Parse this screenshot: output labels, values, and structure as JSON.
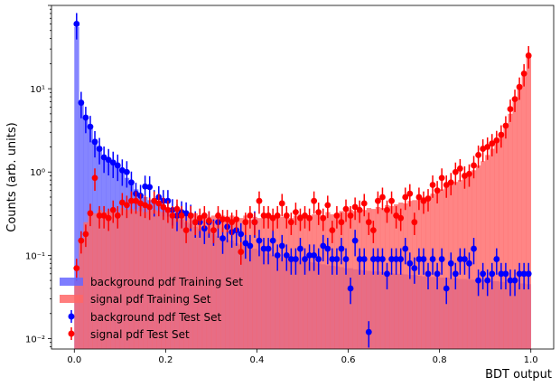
{
  "chart_data": {
    "type": "bar",
    "subtype": "histogram-with-errorbars",
    "title": "",
    "xlabel": "BDT output",
    "ylabel": "Counts (arb. units)",
    "xlim": [
      -0.05,
      1.05
    ],
    "ylim": [
      0.0075,
      100
    ],
    "yscale": "log",
    "xticks": [
      "0.0",
      "0.2",
      "0.4",
      "0.6",
      "0.8",
      "1.0"
    ],
    "yticks": [
      {
        "value": 0.01,
        "label": "10⁻²"
      },
      {
        "value": 0.1,
        "label": "10⁻¹"
      },
      {
        "value": 1,
        "label": "10⁰"
      },
      {
        "value": 10,
        "label": "10¹"
      }
    ],
    "grid": false,
    "legend_position": "lower-left",
    "bin_edges": [
      0.0,
      0.01,
      0.02,
      0.03,
      0.04,
      0.05,
      0.06,
      0.07,
      0.08,
      0.09,
      0.1,
      0.11,
      0.12,
      0.13,
      0.14,
      0.15,
      0.16,
      0.17,
      0.18,
      0.19,
      0.2,
      0.21,
      0.22,
      0.23,
      0.24,
      0.25,
      0.26,
      0.27,
      0.28,
      0.29,
      0.3,
      0.31,
      0.32,
      0.33,
      0.34,
      0.35,
      0.36,
      0.37,
      0.38,
      0.39,
      0.4,
      0.41,
      0.42,
      0.43,
      0.44,
      0.45,
      0.46,
      0.47,
      0.48,
      0.49,
      0.5,
      0.51,
      0.52,
      0.53,
      0.54,
      0.55,
      0.56,
      0.57,
      0.58,
      0.59,
      0.6,
      0.61,
      0.62,
      0.63,
      0.64,
      0.65,
      0.66,
      0.67,
      0.68,
      0.69,
      0.7,
      0.71,
      0.72,
      0.73,
      0.74,
      0.75,
      0.76,
      0.77,
      0.78,
      0.79,
      0.8,
      0.81,
      0.82,
      0.83,
      0.84,
      0.85,
      0.86,
      0.87,
      0.88,
      0.89,
      0.9,
      0.91,
      0.92,
      0.93,
      0.94,
      0.95,
      0.96,
      0.97,
      0.98,
      0.99,
      1.0
    ],
    "series": [
      {
        "name": "background pdf Training Set",
        "kind": "hist",
        "color": "#6666ff",
        "values": [
          55,
          7.0,
          4.2,
          3.4,
          2.5,
          1.9,
          1.6,
          1.4,
          1.3,
          1.2,
          1.0,
          0.85,
          0.75,
          0.62,
          0.55,
          0.5,
          0.46,
          0.43,
          0.4,
          0.37,
          0.34,
          0.31,
          0.29,
          0.27,
          0.25,
          0.24,
          0.22,
          0.21,
          0.2,
          0.19,
          0.18,
          0.17,
          0.16,
          0.155,
          0.15,
          0.14,
          0.135,
          0.13,
          0.125,
          0.12,
          0.115,
          0.11,
          0.105,
          0.1,
          0.098,
          0.095,
          0.092,
          0.09,
          0.088,
          0.086,
          0.085,
          0.083,
          0.082,
          0.08,
          0.078,
          0.076,
          0.075,
          0.074,
          0.072,
          0.07,
          0.07,
          0.068,
          0.067,
          0.066,
          0.065,
          0.064,
          0.064,
          0.063,
          0.062,
          0.061,
          0.06,
          0.06,
          0.059,
          0.058,
          0.058,
          0.057,
          0.056,
          0.056,
          0.055,
          0.055,
          0.054,
          0.054,
          0.053,
          0.053,
          0.052,
          0.052,
          0.051,
          0.051,
          0.05,
          0.05,
          0.05,
          0.049,
          0.049,
          0.048,
          0.048,
          0.047,
          0.047,
          0.046,
          0.046,
          0.045
        ]
      },
      {
        "name": "signal pdf Training Set",
        "kind": "hist",
        "color": "#ff6666",
        "values": [
          0.05,
          0.15,
          0.25,
          0.3,
          0.32,
          0.35,
          0.33,
          0.34,
          0.36,
          0.33,
          0.37,
          0.35,
          0.36,
          0.34,
          0.38,
          0.33,
          0.36,
          0.35,
          0.34,
          0.33,
          0.35,
          0.32,
          0.34,
          0.3,
          0.33,
          0.31,
          0.32,
          0.3,
          0.31,
          0.29,
          0.3,
          0.29,
          0.3,
          0.28,
          0.3,
          0.29,
          0.28,
          0.3,
          0.27,
          0.29,
          0.28,
          0.3,
          0.29,
          0.28,
          0.3,
          0.29,
          0.31,
          0.28,
          0.3,
          0.31,
          0.3,
          0.29,
          0.31,
          0.32,
          0.3,
          0.33,
          0.31,
          0.32,
          0.34,
          0.33,
          0.35,
          0.34,
          0.36,
          0.35,
          0.37,
          0.36,
          0.38,
          0.37,
          0.4,
          0.39,
          0.41,
          0.43,
          0.42,
          0.45,
          0.46,
          0.48,
          0.5,
          0.52,
          0.55,
          0.6,
          0.62,
          0.66,
          0.7,
          0.76,
          0.8,
          0.88,
          0.95,
          1.05,
          1.2,
          1.35,
          1.6,
          1.9,
          2.3,
          2.9,
          3.8,
          5.0,
          7.0,
          10.0,
          15.0,
          25.0
        ]
      },
      {
        "name": "background pdf Test Set",
        "kind": "errorbar",
        "color": "#0000ff",
        "x": [
          0.005,
          0.015,
          0.025,
          0.035,
          0.045,
          0.055,
          0.065,
          0.075,
          0.085,
          0.095,
          0.105,
          0.115,
          0.125,
          0.135,
          0.145,
          0.155,
          0.165,
          0.175,
          0.185,
          0.195,
          0.205,
          0.215,
          0.225,
          0.235,
          0.245,
          0.255,
          0.265,
          0.275,
          0.285,
          0.295,
          0.305,
          0.315,
          0.325,
          0.335,
          0.345,
          0.355,
          0.365,
          0.375,
          0.385,
          0.395,
          0.405,
          0.415,
          0.425,
          0.435,
          0.445,
          0.455,
          0.465,
          0.475,
          0.485,
          0.495,
          0.505,
          0.515,
          0.525,
          0.535,
          0.545,
          0.555,
          0.565,
          0.575,
          0.585,
          0.595,
          0.605,
          0.615,
          0.625,
          0.635,
          0.645,
          0.655,
          0.665,
          0.675,
          0.685,
          0.695,
          0.705,
          0.715,
          0.725,
          0.735,
          0.745,
          0.755,
          0.765,
          0.775,
          0.785,
          0.795,
          0.805,
          0.815,
          0.825,
          0.835,
          0.845,
          0.855,
          0.865,
          0.875,
          0.885,
          0.895,
          0.905,
          0.915,
          0.925,
          0.935,
          0.945,
          0.955,
          0.965,
          0.975,
          0.985,
          0.995
        ],
        "y": [
          60,
          6.8,
          4.5,
          3.5,
          2.3,
          1.9,
          1.5,
          1.4,
          1.3,
          1.2,
          1.05,
          1.0,
          0.75,
          0.55,
          0.52,
          0.67,
          0.66,
          0.45,
          0.5,
          0.45,
          0.45,
          0.35,
          0.3,
          0.33,
          0.32,
          0.3,
          0.25,
          0.25,
          0.21,
          0.25,
          0.2,
          0.25,
          0.16,
          0.22,
          0.19,
          0.2,
          0.18,
          0.14,
          0.13,
          0.25,
          0.15,
          0.12,
          0.12,
          0.15,
          0.1,
          0.13,
          0.1,
          0.09,
          0.09,
          0.12,
          0.09,
          0.1,
          0.1,
          0.09,
          0.13,
          0.12,
          0.09,
          0.09,
          0.12,
          0.09,
          0.04,
          0.15,
          0.09,
          0.09,
          0.012,
          0.09,
          0.09,
          0.09,
          0.06,
          0.09,
          0.09,
          0.09,
          0.12,
          0.08,
          0.07,
          0.09,
          0.09,
          0.06,
          0.09,
          0.06,
          0.09,
          0.04,
          0.08,
          0.06,
          0.09,
          0.09,
          0.08,
          0.12,
          0.05,
          0.06,
          0.05,
          0.06,
          0.09,
          0.06,
          0.06,
          0.05,
          0.05,
          0.06,
          0.06,
          0.06
        ],
        "yerr_rel": 0.35
      },
      {
        "name": "signal pdf Test Set",
        "kind": "errorbar",
        "color": "#ff0000",
        "x": [
          0.005,
          0.015,
          0.025,
          0.035,
          0.045,
          0.055,
          0.065,
          0.075,
          0.085,
          0.095,
          0.105,
          0.115,
          0.125,
          0.135,
          0.145,
          0.155,
          0.165,
          0.175,
          0.185,
          0.195,
          0.205,
          0.215,
          0.225,
          0.235,
          0.245,
          0.255,
          0.265,
          0.275,
          0.285,
          0.295,
          0.305,
          0.315,
          0.325,
          0.335,
          0.345,
          0.355,
          0.365,
          0.375,
          0.385,
          0.395,
          0.405,
          0.415,
          0.425,
          0.435,
          0.445,
          0.455,
          0.465,
          0.475,
          0.485,
          0.495,
          0.505,
          0.515,
          0.525,
          0.535,
          0.545,
          0.555,
          0.565,
          0.575,
          0.585,
          0.595,
          0.605,
          0.615,
          0.625,
          0.635,
          0.645,
          0.655,
          0.665,
          0.675,
          0.685,
          0.695,
          0.705,
          0.715,
          0.725,
          0.735,
          0.745,
          0.755,
          0.765,
          0.775,
          0.785,
          0.795,
          0.805,
          0.815,
          0.825,
          0.835,
          0.845,
          0.855,
          0.865,
          0.875,
          0.885,
          0.895,
          0.905,
          0.915,
          0.925,
          0.935,
          0.945,
          0.955,
          0.965,
          0.975,
          0.985,
          0.995
        ],
        "y": [
          0.07,
          0.15,
          0.18,
          0.32,
          0.85,
          0.3,
          0.3,
          0.28,
          0.35,
          0.3,
          0.43,
          0.4,
          0.45,
          0.45,
          0.42,
          0.4,
          0.38,
          0.45,
          0.42,
          0.38,
          0.35,
          0.3,
          0.36,
          0.3,
          0.2,
          0.3,
          0.25,
          0.28,
          0.3,
          0.26,
          0.2,
          0.3,
          0.27,
          0.27,
          0.25,
          0.27,
          0.11,
          0.25,
          0.3,
          0.25,
          0.45,
          0.3,
          0.3,
          0.28,
          0.3,
          0.42,
          0.3,
          0.25,
          0.33,
          0.28,
          0.3,
          0.28,
          0.45,
          0.33,
          0.28,
          0.4,
          0.2,
          0.3,
          0.25,
          0.36,
          0.3,
          0.38,
          0.35,
          0.42,
          0.25,
          0.2,
          0.45,
          0.5,
          0.35,
          0.45,
          0.3,
          0.28,
          0.5,
          0.55,
          0.25,
          0.5,
          0.45,
          0.48,
          0.7,
          0.6,
          0.85,
          0.7,
          0.75,
          1.0,
          1.1,
          0.9,
          0.95,
          1.2,
          1.6,
          1.9,
          2.0,
          2.2,
          2.4,
          2.8,
          3.6,
          5.7,
          7.5,
          10.5,
          15.2,
          25.0
        ],
        "yerr_rel": 0.3
      }
    ]
  }
}
